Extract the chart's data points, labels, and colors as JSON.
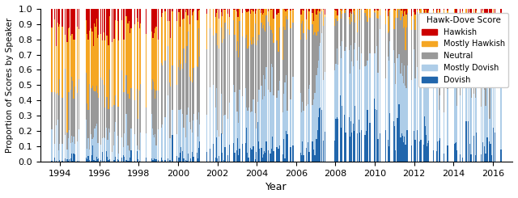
{
  "title": "",
  "xlabel": "Year",
  "ylabel": "Proportion of Scores by Speaker",
  "colors": {
    "Hawkish": "#CC0000",
    "Mostly Hawkish": "#F5A623",
    "Neutral": "#999999",
    "Mostly Dovish": "#AECDE8",
    "Dovish": "#2166AC"
  },
  "legend_title": "Hawk-Dove Score",
  "legend_labels": [
    "Hawkish",
    "Mostly Hawkish",
    "Neutral",
    "Mostly Dovish",
    "Dovish"
  ],
  "stack_order": [
    "Dovish",
    "Mostly Dovish",
    "Neutral",
    "Mostly Hawkish",
    "Hawkish"
  ],
  "xlim": [
    1993.0,
    2017.0
  ],
  "ylim": [
    0,
    1.0
  ],
  "bar_width": 0.055,
  "figsize": [
    6.4,
    2.45
  ],
  "dpi": 100,
  "years_ticks": [
    1994,
    1996,
    1998,
    2000,
    2002,
    2004,
    2006,
    2008,
    2010,
    2012,
    2014,
    2016
  ],
  "yticks": [
    0.0,
    0.1,
    0.2,
    0.3,
    0.4,
    0.5,
    0.6,
    0.7,
    0.8,
    0.9,
    1.0
  ],
  "seed": 42,
  "n_bars": 320
}
